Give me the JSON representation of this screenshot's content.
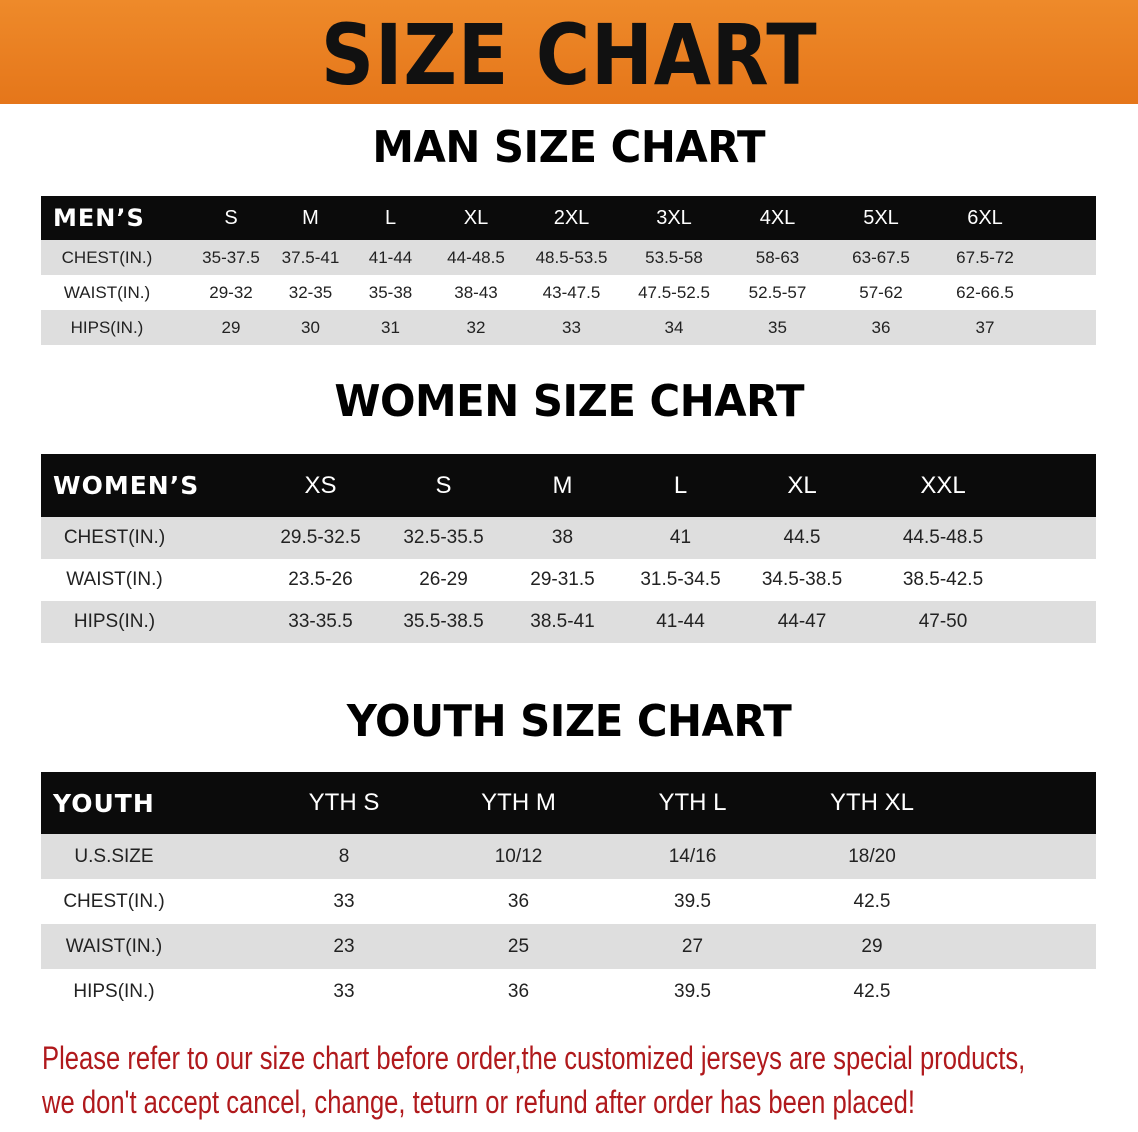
{
  "banner_title": "SIZE CHART",
  "men": {
    "title": "MAN SIZE CHART",
    "header_label": "MEN’S",
    "sizes": [
      "S",
      "M",
      "L",
      "XL",
      "2XL",
      "3XL",
      "4XL",
      "5XL",
      "6XL"
    ],
    "rows": [
      {
        "label": "CHEST(IN.)",
        "values": [
          "35-37.5",
          "37.5-41",
          "41-44",
          "44-48.5",
          "48.5-53.5",
          "53.5-58",
          "58-63",
          "63-67.5",
          "67.5-72"
        ]
      },
      {
        "label": "WAIST(IN.)",
        "values": [
          "29-32",
          "32-35",
          "35-38",
          "38-43",
          "43-47.5",
          "47.5-52.5",
          "52.5-57",
          "57-62",
          "62-66.5"
        ]
      },
      {
        "label": "HIPS(IN.)",
        "values": [
          "29",
          "30",
          "31",
          "32",
          "33",
          "34",
          "35",
          "36",
          "37"
        ]
      }
    ]
  },
  "women": {
    "title": "WOMEN SIZE CHART",
    "header_label": "WOMEN’S",
    "sizes": [
      "XS",
      "S",
      "M",
      "L",
      "XL",
      "XXL"
    ],
    "rows": [
      {
        "label": "CHEST(IN.)",
        "values": [
          "29.5-32.5",
          "32.5-35.5",
          "38",
          "41",
          "44.5",
          "44.5-48.5"
        ]
      },
      {
        "label": "WAIST(IN.)",
        "values": [
          "23.5-26",
          "26-29",
          "29-31.5",
          "31.5-34.5",
          "34.5-38.5",
          "38.5-42.5"
        ]
      },
      {
        "label": "HIPS(IN.)",
        "values": [
          "33-35.5",
          "35.5-38.5",
          "38.5-41",
          "41-44",
          "44-47",
          "47-50"
        ]
      }
    ]
  },
  "youth": {
    "title": "YOUTH SIZE CHART",
    "header_label": "YOUTH",
    "sizes": [
      "YTH S",
      "YTH M",
      "YTH L",
      "YTH XL"
    ],
    "rows": [
      {
        "label": "U.S.SIZE",
        "values": [
          "8",
          "10/12",
          "14/16",
          "18/20"
        ]
      },
      {
        "label": "CHEST(IN.)",
        "values": [
          "33",
          "36",
          "39.5",
          "42.5"
        ]
      },
      {
        "label": "WAIST(IN.)",
        "values": [
          "23",
          "25",
          "27",
          "29"
        ]
      },
      {
        "label": "HIPS(IN.)",
        "values": [
          "33",
          "36",
          "39.5",
          "42.5"
        ]
      }
    ]
  },
  "note": {
    "line1": "Please refer to our size chart before order,the customized jerseys are special products,",
    "line2": "we don't accept cancel, change, teturn or refund after order has been placed!",
    "color": "#b0191c"
  },
  "colors": {
    "banner": "#e87d1e",
    "header_bg": "#0b0b0b",
    "stripe": "#dedede"
  }
}
